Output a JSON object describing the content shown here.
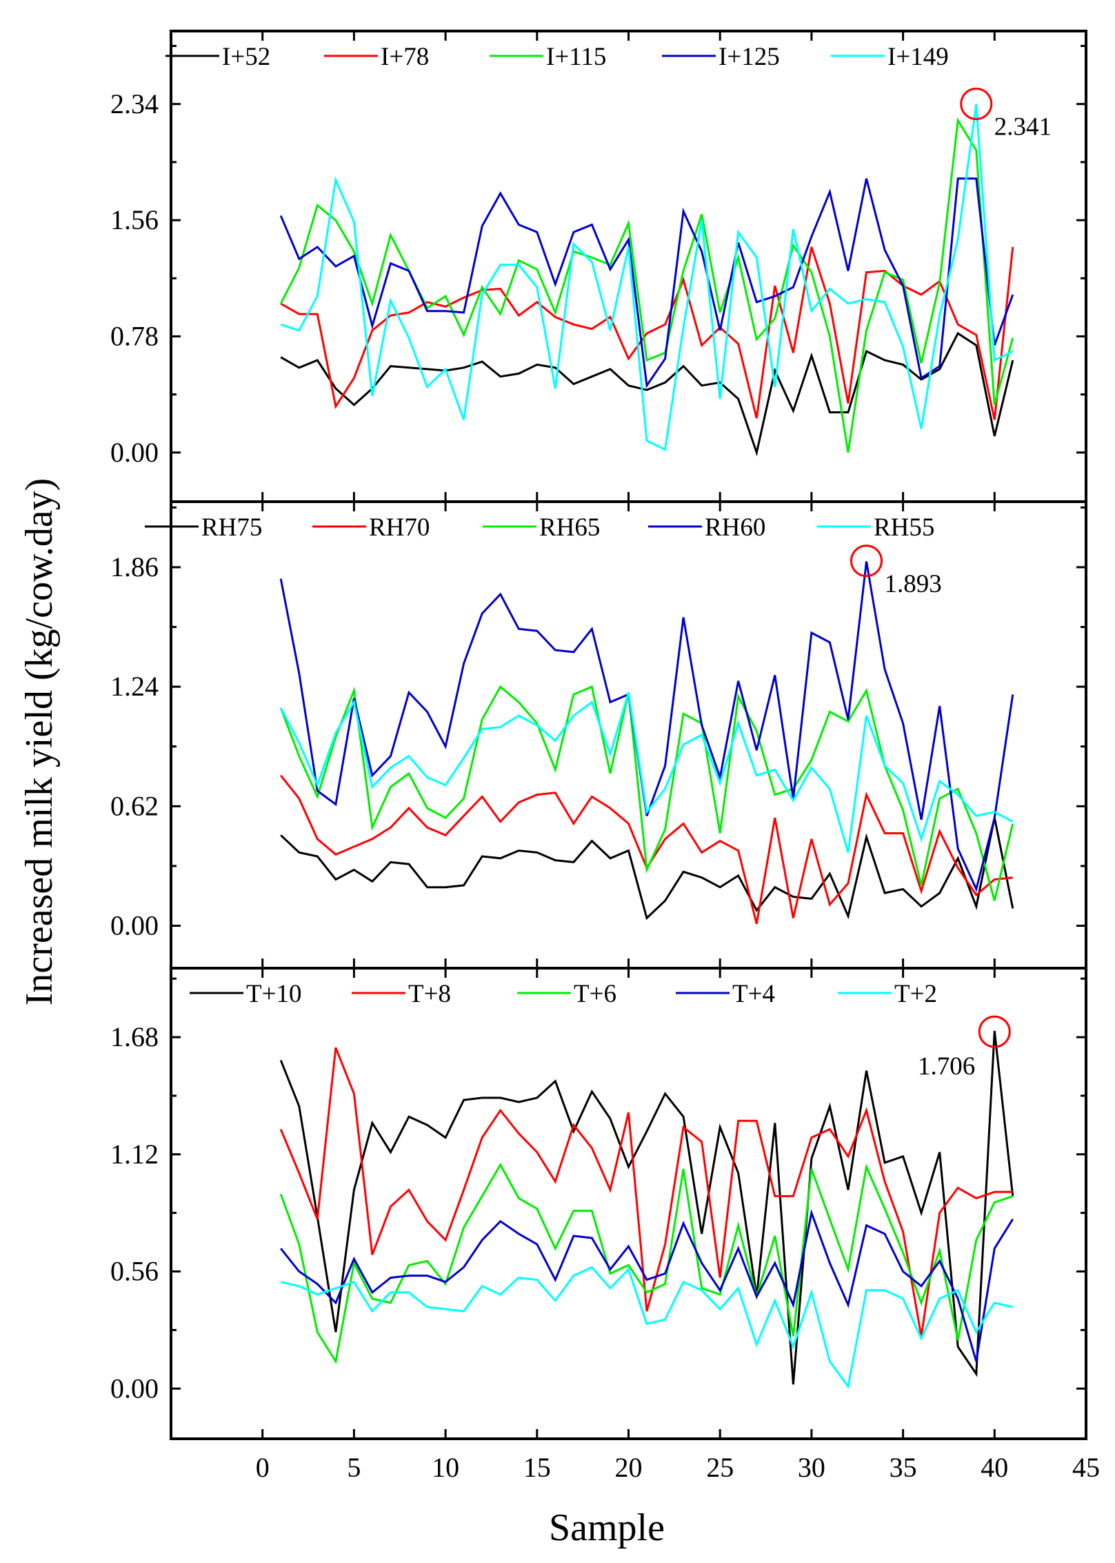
{
  "chart_data": [
    {
      "type": "line",
      "title": "",
      "xlabel": "Sample",
      "ylabel": "Increased milk yield (kg/cow.day)",
      "xlim": [
        -5,
        45
      ],
      "ylim": [
        -0.33,
        2.83
      ],
      "yticks": [
        0,
        0.78,
        1.56,
        2.34
      ],
      "ytick_labels": [
        "0.00",
        "0.78",
        "1.56",
        "2.34"
      ],
      "legend_position": "top",
      "annotation": {
        "x": 39,
        "y": 2.341,
        "label": "2.341"
      },
      "x": [
        1,
        2,
        3,
        4,
        5,
        6,
        7,
        8,
        9,
        10,
        11,
        12,
        13,
        14,
        15,
        16,
        17,
        18,
        19,
        20,
        21,
        22,
        23,
        24,
        25,
        26,
        27,
        28,
        29,
        30,
        31,
        32,
        33,
        34,
        35,
        36,
        37,
        38,
        39,
        40,
        41
      ],
      "series": [
        {
          "name": "I+52",
          "color": "#000000",
          "values": [
            0.64,
            0.57,
            0.62,
            0.43,
            0.32,
            0.43,
            0.58,
            0.57,
            0.56,
            0.55,
            0.57,
            0.61,
            0.51,
            0.53,
            0.59,
            0.57,
            0.46,
            0.51,
            0.56,
            0.45,
            0.42,
            0.47,
            0.58,
            0.45,
            0.47,
            0.36,
            0.0,
            0.55,
            0.28,
            0.65,
            0.27,
            0.27,
            0.68,
            0.62,
            0.59,
            0.49,
            0.56,
            0.8,
            0.72,
            0.11,
            0.62
          ]
        },
        {
          "name": "I+78",
          "color": "#ff0000",
          "values": [
            1.0,
            0.93,
            0.93,
            0.31,
            0.5,
            0.82,
            0.92,
            0.94,
            1.01,
            0.98,
            1.04,
            1.09,
            1.1,
            0.92,
            1.01,
            0.91,
            0.86,
            0.83,
            0.91,
            0.63,
            0.8,
            0.86,
            1.16,
            0.72,
            0.84,
            0.73,
            0.23,
            1.12,
            0.67,
            1.38,
            1.0,
            0.33,
            1.21,
            1.22,
            1.12,
            1.06,
            1.15,
            0.86,
            0.79,
            0.22,
            1.38
          ]
        },
        {
          "name": "I+115",
          "color": "#00ee00",
          "values": [
            1.0,
            1.24,
            1.66,
            1.56,
            1.35,
            1.0,
            1.46,
            1.22,
            0.97,
            1.05,
            0.79,
            1.11,
            0.93,
            1.29,
            1.23,
            0.94,
            1.35,
            1.31,
            1.26,
            1.54,
            0.62,
            0.67,
            1.22,
            1.6,
            0.94,
            1.31,
            0.76,
            0.9,
            1.39,
            1.21,
            0.78,
            0.0,
            0.82,
            1.21,
            1.16,
            0.6,
            1.14,
            2.23,
            2.03,
            0.32,
            0.77
          ]
        },
        {
          "name": "I+125",
          "color": "#0000cc",
          "values": [
            1.59,
            1.3,
            1.38,
            1.25,
            1.32,
            0.85,
            1.27,
            1.22,
            0.95,
            0.95,
            0.94,
            1.52,
            1.74,
            1.53,
            1.48,
            1.13,
            1.48,
            1.53,
            1.23,
            1.43,
            0.45,
            0.63,
            1.62,
            1.35,
            0.82,
            1.41,
            1.01,
            1.05,
            1.11,
            1.45,
            1.75,
            1.22,
            1.84,
            1.36,
            1.12,
            0.5,
            0.58,
            1.84,
            1.84,
            0.72,
            1.06
          ]
        },
        {
          "name": "I+149",
          "color": "#00ffff",
          "values": [
            0.86,
            0.82,
            1.05,
            1.83,
            1.55,
            0.38,
            1.02,
            0.77,
            0.44,
            0.56,
            0.22,
            1.06,
            1.26,
            1.26,
            1.11,
            0.43,
            1.4,
            1.28,
            0.82,
            1.38,
            0.08,
            0.02,
            0.84,
            1.56,
            0.36,
            1.48,
            1.31,
            0.44,
            1.5,
            0.95,
            1.1,
            1.0,
            1.03,
            1.01,
            0.71,
            0.16,
            0.92,
            1.43,
            2.34,
            0.62,
            0.68
          ]
        }
      ]
    },
    {
      "type": "line",
      "title": "",
      "xlabel": "Sample",
      "ylabel": "Increased milk yield (kg/cow.day)",
      "xlim": [
        -5,
        45
      ],
      "ylim": [
        -0.22,
        2.2
      ],
      "yticks": [
        0,
        0.62,
        1.24,
        1.86
      ],
      "ytick_labels": [
        "0.00",
        "0.62",
        "1.24",
        "1.86"
      ],
      "legend_position": "top",
      "annotation": {
        "x": 33,
        "y": 1.893,
        "label": "1.893"
      },
      "x": [
        1,
        2,
        3,
        4,
        5,
        6,
        7,
        8,
        9,
        10,
        11,
        12,
        13,
        14,
        15,
        16,
        17,
        18,
        19,
        20,
        21,
        22,
        23,
        24,
        25,
        26,
        27,
        28,
        29,
        30,
        31,
        32,
        33,
        34,
        35,
        36,
        37,
        38,
        39,
        40,
        41
      ],
      "series": [
        {
          "name": "RH75",
          "color": "#000000",
          "values": [
            0.47,
            0.38,
            0.36,
            0.24,
            0.29,
            0.23,
            0.33,
            0.32,
            0.2,
            0.2,
            0.21,
            0.36,
            0.35,
            0.39,
            0.38,
            0.34,
            0.33,
            0.44,
            0.35,
            0.39,
            0.04,
            0.13,
            0.28,
            0.25,
            0.2,
            0.26,
            0.08,
            0.2,
            0.15,
            0.14,
            0.27,
            0.05,
            0.46,
            0.17,
            0.19,
            0.1,
            0.17,
            0.35,
            0.1,
            0.56,
            0.09
          ]
        },
        {
          "name": "RH70",
          "color": "#ff0000",
          "values": [
            0.78,
            0.66,
            0.45,
            0.37,
            0.41,
            0.45,
            0.51,
            0.61,
            0.51,
            0.47,
            0.57,
            0.67,
            0.54,
            0.64,
            0.68,
            0.69,
            0.53,
            0.67,
            0.61,
            0.53,
            0.3,
            0.45,
            0.53,
            0.38,
            0.44,
            0.39,
            0.01,
            0.56,
            0.04,
            0.45,
            0.11,
            0.22,
            0.68,
            0.48,
            0.48,
            0.18,
            0.49,
            0.3,
            0.16,
            0.24,
            0.25
          ]
        },
        {
          "name": "RH65",
          "color": "#00ee00",
          "values": [
            1.13,
            0.88,
            0.67,
            0.98,
            1.22,
            0.51,
            0.72,
            0.79,
            0.61,
            0.56,
            0.66,
            1.07,
            1.24,
            1.16,
            1.05,
            0.81,
            1.2,
            1.24,
            0.79,
            1.21,
            0.29,
            0.5,
            1.1,
            1.05,
            0.48,
            1.19,
            1.01,
            0.68,
            0.71,
            0.86,
            1.11,
            1.06,
            1.22,
            0.83,
            0.6,
            0.21,
            0.66,
            0.71,
            0.48,
            0.13,
            0.53
          ]
        },
        {
          "name": "RH60",
          "color": "#0000cc",
          "values": [
            1.8,
            1.31,
            0.7,
            0.63,
            1.18,
            0.78,
            0.88,
            1.21,
            1.11,
            0.93,
            1.36,
            1.62,
            1.72,
            1.54,
            1.53,
            1.43,
            1.42,
            1.54,
            1.16,
            1.2,
            0.57,
            0.83,
            1.6,
            1.04,
            0.77,
            1.27,
            0.91,
            1.3,
            0.66,
            1.52,
            1.47,
            1.07,
            1.89,
            1.33,
            1.05,
            0.55,
            1.14,
            0.4,
            0.19,
            0.56,
            1.2
          ]
        },
        {
          "name": "RH55",
          "color": "#00ffff",
          "values": [
            1.13,
            0.95,
            0.73,
            1.0,
            1.16,
            0.72,
            0.82,
            0.88,
            0.77,
            0.73,
            0.87,
            1.02,
            1.03,
            1.09,
            1.04,
            0.96,
            1.09,
            1.16,
            0.89,
            1.21,
            0.59,
            0.71,
            0.94,
            0.99,
            0.74,
            1.05,
            0.78,
            0.81,
            0.65,
            0.82,
            0.71,
            0.38,
            1.09,
            0.83,
            0.74,
            0.45,
            0.75,
            0.68,
            0.57,
            0.59,
            0.54
          ]
        }
      ]
    },
    {
      "type": "line",
      "title": "",
      "xlabel": "Sample",
      "ylabel": "Increased milk yield (kg/cow.day)",
      "xlim": [
        -5,
        45
      ],
      "ylim": [
        -0.24,
        2.01
      ],
      "yticks": [
        0,
        0.56,
        1.12,
        1.68
      ],
      "ytick_labels": [
        "0.00",
        "0.56",
        "1.12",
        "1.68"
      ],
      "legend_position": "top",
      "annotation": {
        "x": 40,
        "y": 1.706,
        "label": "1.706"
      },
      "x": [
        1,
        2,
        3,
        4,
        5,
        6,
        7,
        8,
        9,
        10,
        11,
        12,
        13,
        14,
        15,
        16,
        17,
        18,
        19,
        20,
        21,
        22,
        23,
        24,
        25,
        26,
        27,
        28,
        29,
        30,
        31,
        32,
        33,
        34,
        35,
        36,
        37,
        38,
        39,
        40,
        41
      ],
      "series": [
        {
          "name": "T+10",
          "color": "#000000",
          "values": [
            1.57,
            1.35,
            0.82,
            0.27,
            0.95,
            1.27,
            1.13,
            1.3,
            1.26,
            1.2,
            1.38,
            1.39,
            1.39,
            1.37,
            1.39,
            1.47,
            1.23,
            1.42,
            1.29,
            1.06,
            1.23,
            1.41,
            1.3,
            0.74,
            1.25,
            1.03,
            0.44,
            1.27,
            0.02,
            1.1,
            1.35,
            0.95,
            1.52,
            1.08,
            1.11,
            0.84,
            1.13,
            0.2,
            0.07,
            1.71,
            0.92
          ]
        },
        {
          "name": "T+8",
          "color": "#ff0000",
          "values": [
            1.24,
            1.03,
            0.81,
            1.63,
            1.41,
            0.64,
            0.87,
            0.95,
            0.8,
            0.71,
            0.95,
            1.2,
            1.33,
            1.22,
            1.13,
            0.99,
            1.26,
            1.15,
            0.95,
            1.32,
            0.37,
            0.69,
            1.25,
            1.18,
            0.53,
            1.28,
            1.28,
            0.92,
            0.92,
            1.2,
            1.24,
            1.11,
            1.33,
            0.99,
            0.75,
            0.25,
            0.84,
            0.96,
            0.91,
            0.94,
            0.94
          ]
        },
        {
          "name": "T+6",
          "color": "#00ee00",
          "values": [
            0.93,
            0.69,
            0.27,
            0.13,
            0.6,
            0.43,
            0.41,
            0.59,
            0.61,
            0.5,
            0.77,
            0.92,
            1.07,
            0.91,
            0.86,
            0.67,
            0.85,
            0.85,
            0.55,
            0.59,
            0.46,
            0.5,
            1.05,
            0.48,
            0.45,
            0.78,
            0.44,
            0.73,
            0.25,
            1.05,
            0.81,
            0.57,
            1.06,
            0.86,
            0.65,
            0.41,
            0.66,
            0.23,
            0.71,
            0.89,
            0.92
          ]
        },
        {
          "name": "T+4",
          "color": "#0000cc",
          "values": [
            0.67,
            0.56,
            0.5,
            0.41,
            0.62,
            0.46,
            0.53,
            0.54,
            0.54,
            0.51,
            0.58,
            0.71,
            0.8,
            0.74,
            0.69,
            0.52,
            0.73,
            0.72,
            0.57,
            0.68,
            0.52,
            0.55,
            0.79,
            0.6,
            0.47,
            0.67,
            0.44,
            0.6,
            0.4,
            0.84,
            0.6,
            0.4,
            0.78,
            0.74,
            0.56,
            0.49,
            0.61,
            0.43,
            0.13,
            0.67,
            0.81
          ]
        },
        {
          "name": "T+2",
          "color": "#00ffff",
          "values": [
            0.51,
            0.49,
            0.45,
            0.48,
            0.51,
            0.37,
            0.46,
            0.46,
            0.39,
            0.38,
            0.37,
            0.49,
            0.45,
            0.53,
            0.52,
            0.42,
            0.54,
            0.58,
            0.48,
            0.57,
            0.31,
            0.33,
            0.51,
            0.47,
            0.38,
            0.48,
            0.21,
            0.42,
            0.2,
            0.46,
            0.13,
            0.01,
            0.47,
            0.47,
            0.43,
            0.24,
            0.43,
            0.47,
            0.27,
            0.41,
            0.39
          ]
        }
      ]
    }
  ]
}
